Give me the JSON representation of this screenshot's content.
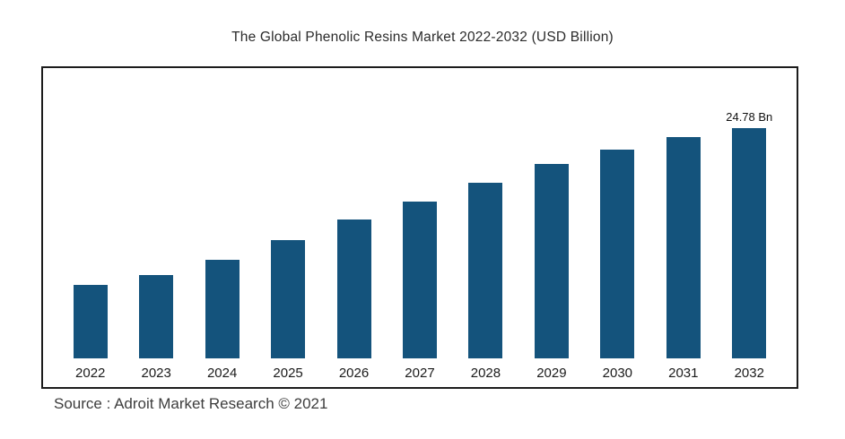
{
  "title": "The Global Phenolic Resins Market 2022-2032 (USD Billion)",
  "source": "Source : Adroit Market Research © 2021",
  "chart_data": {
    "type": "bar",
    "title": "The Global Phenolic Resins Market 2022-2032 (USD Billion)",
    "categories": [
      "2022",
      "2023",
      "2024",
      "2025",
      "2026",
      "2027",
      "2028",
      "2029",
      "2030",
      "2031",
      "2032"
    ],
    "values": [
      7.9,
      9.0,
      10.6,
      12.7,
      14.9,
      16.9,
      18.9,
      20.9,
      22.5,
      23.8,
      24.78
    ],
    "unit": "USD Billion",
    "xlabel": "",
    "ylabel": "",
    "ylim": [
      0,
      26
    ],
    "grid": false,
    "legend": false,
    "bar_color": "#14537c",
    "annotations": {
      "2032": "24.78 Bn"
    },
    "source": "Source : Adroit Market Research © 2021"
  }
}
